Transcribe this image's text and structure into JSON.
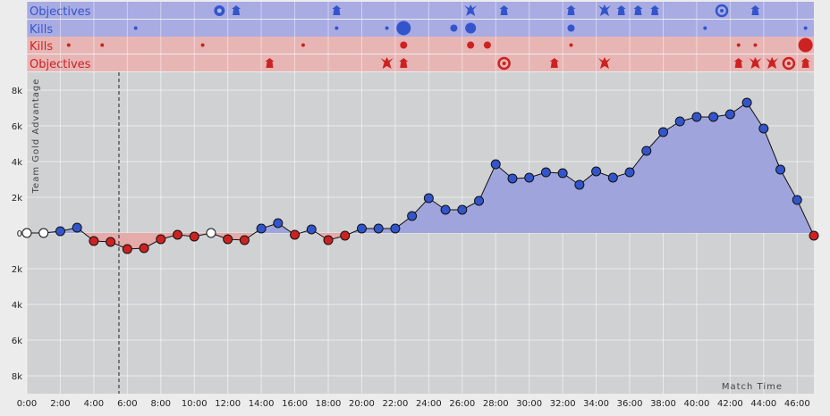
{
  "chart_data": {
    "type": "line",
    "ylabel": "Team Gold Advantage",
    "xlabel": "Match Time",
    "xlim": [
      0,
      47
    ],
    "ylim": [
      -8000,
      8000
    ],
    "x_ticks": [
      "0:00",
      "2:00",
      "4:00",
      "6:00",
      "8:00",
      "10:00",
      "12:00",
      "14:00",
      "16:00",
      "18:00",
      "20:00",
      "22:00",
      "24:00",
      "26:00",
      "28:00",
      "30:00",
      "32:00",
      "34:00",
      "36:00",
      "38:00",
      "40:00",
      "42:00",
      "44:00",
      "46:00"
    ],
    "y_ticks": [
      "8k",
      "6k",
      "4k",
      "2k",
      "0",
      "2k",
      "4k",
      "6k",
      "8k"
    ],
    "marker_line_minute": 5.5,
    "series": [
      {
        "x": [
          0,
          1,
          2,
          3,
          4,
          5,
          6,
          7,
          8,
          9,
          10,
          11,
          12,
          13,
          14,
          15,
          16,
          17,
          18,
          19,
          20,
          21,
          22,
          23,
          24,
          25,
          26,
          27,
          28,
          29,
          30,
          31,
          32,
          33,
          34,
          35,
          36,
          37,
          38,
          39,
          40,
          41,
          42,
          43,
          44,
          45,
          46,
          47
        ],
        "values": [
          0,
          0,
          100,
          300,
          -450,
          -500,
          -900,
          -850,
          -350,
          -100,
          -200,
          0,
          -350,
          -400,
          250,
          550,
          -100,
          200,
          -400,
          -150,
          250,
          250,
          250,
          950,
          1950,
          1300,
          1300,
          1800,
          3850,
          3050,
          3100,
          3400,
          3350,
          2700,
          3450,
          3100,
          3400,
          4600,
          5650,
          6250,
          6500,
          6500,
          6650,
          7300,
          5850,
          3550,
          1850,
          -150
        ]
      }
    ],
    "bands": [
      {
        "label": "Objectives",
        "team": "blue"
      },
      {
        "label": "Kills",
        "team": "blue"
      },
      {
        "label": "Kills",
        "team": "red"
      },
      {
        "label": "Objectives",
        "team": "red"
      }
    ],
    "events": {
      "blue_objectives": [
        {
          "t": 11.5,
          "icon": "baron"
        },
        {
          "t": 12.5,
          "icon": "tower"
        },
        {
          "t": 18.5,
          "icon": "tower"
        },
        {
          "t": 26.5,
          "icon": "dragon"
        },
        {
          "t": 28.5,
          "icon": "tower"
        },
        {
          "t": 32.5,
          "icon": "tower"
        },
        {
          "t": 34.5,
          "icon": "dragon"
        },
        {
          "t": 35.5,
          "icon": "tower"
        },
        {
          "t": 36.5,
          "icon": "tower"
        },
        {
          "t": 37.5,
          "icon": "tower"
        },
        {
          "t": 41.5,
          "icon": "herald"
        },
        {
          "t": 43.5,
          "icon": "tower"
        }
      ],
      "blue_kills": [
        {
          "t": 6.5,
          "size": 2
        },
        {
          "t": 18.5,
          "size": 2
        },
        {
          "t": 21.5,
          "size": 2
        },
        {
          "t": 22.5,
          "size": 8
        },
        {
          "t": 25.5,
          "size": 4
        },
        {
          "t": 26.5,
          "size": 6
        },
        {
          "t": 32.5,
          "size": 4
        },
        {
          "t": 40.5,
          "size": 2
        },
        {
          "t": 46.5,
          "size": 2
        }
      ],
      "red_kills": [
        {
          "t": 2.5,
          "size": 2
        },
        {
          "t": 4.5,
          "size": 2
        },
        {
          "t": 10.5,
          "size": 2
        },
        {
          "t": 16.5,
          "size": 2
        },
        {
          "t": 22.5,
          "size": 4
        },
        {
          "t": 26.5,
          "size": 4
        },
        {
          "t": 27.5,
          "size": 4
        },
        {
          "t": 32.5,
          "size": 2
        },
        {
          "t": 42.5,
          "size": 2
        },
        {
          "t": 43.5,
          "size": 2
        },
        {
          "t": 46.5,
          "size": 8
        }
      ],
      "red_objectives": [
        {
          "t": 14.5,
          "icon": "tower"
        },
        {
          "t": 21.5,
          "icon": "dragon"
        },
        {
          "t": 22.5,
          "icon": "tower"
        },
        {
          "t": 28.5,
          "icon": "herald"
        },
        {
          "t": 31.5,
          "icon": "tower"
        },
        {
          "t": 34.5,
          "icon": "dragon"
        },
        {
          "t": 42.5,
          "icon": "tower"
        },
        {
          "t": 43.5,
          "icon": "dragon"
        },
        {
          "t": 44.5,
          "icon": "dragon"
        },
        {
          "t": 45.5,
          "icon": "herald"
        },
        {
          "t": 46.5,
          "icon": "tower"
        }
      ]
    },
    "colors": {
      "blue": "#3355cc",
      "red": "#cc2222",
      "blue_fill": "#9fa5dc",
      "red_fill": "#e5aaaa",
      "neutral": "#ffffff",
      "plot_bg": "#d0d1d3",
      "blue_band": "#a9abe3",
      "red_band": "#e8b5b5"
    },
    "grid": true
  }
}
